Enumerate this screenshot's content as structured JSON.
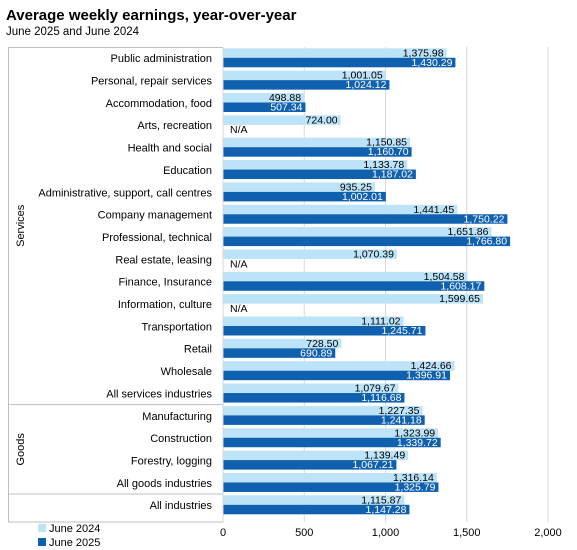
{
  "chart_data": {
    "type": "bar",
    "orientation": "horizontal",
    "title": "Average weekly earnings, year-over-year",
    "subtitle": "June 2025 and June 2024",
    "groups": [
      {
        "label": "Services",
        "categories": [
          "Public administration",
          "Personal, repair services",
          "Accommodation, food",
          "Arts, recreation",
          "Health and social",
          "Education",
          "Administrative, support, call centres",
          "Company management",
          "Professional, technical",
          "Real estate, leasing",
          "Finance, Insurance",
          "Information, culture",
          "Transportation",
          "Retail",
          "Wholesale",
          "All services industries"
        ]
      },
      {
        "label": "Goods",
        "categories": [
          "Manufacturing",
          "Construction",
          "Forestry, logging",
          "All goods industries"
        ]
      },
      {
        "label": "",
        "categories": [
          "All industries"
        ]
      }
    ],
    "categories": [
      "Public administration",
      "Personal, repair services",
      "Accommodation, food",
      "Arts, recreation",
      "Health and social",
      "Education",
      "Administrative, support, call centres",
      "Company management",
      "Professional, technical",
      "Real estate, leasing",
      "Finance, Insurance",
      "Information, culture",
      "Transportation",
      "Retail",
      "Wholesale",
      "All services industries",
      "Manufacturing",
      "Construction",
      "Forestry, logging",
      "All goods industries",
      "All industries"
    ],
    "series": [
      {
        "name": "June 2024",
        "color": "#bde3f8",
        "values": [
          1375.98,
          1001.05,
          498.88,
          724.0,
          1150.85,
          1133.78,
          935.25,
          1441.45,
          1651.86,
          1070.39,
          1504.58,
          1599.65,
          1111.02,
          728.5,
          1424.66,
          1079.67,
          1227.35,
          1323.99,
          1139.49,
          1316.14,
          1115.87
        ],
        "labels": [
          "1,375.98",
          "1,001.05",
          "498.88",
          "724.00",
          "1,150.85",
          "1,133.78",
          "935.25",
          "1,441.45",
          "1,651.86",
          "1,070.39",
          "1,504.58",
          "1,599.65",
          "1,111.02",
          "728.50",
          "1,424.66",
          "1,079.67",
          "1,227.35",
          "1,323.99",
          "1,139.49",
          "1,316.14",
          "1,115.87"
        ]
      },
      {
        "name": "June 2025",
        "color": "#1060b0",
        "values": [
          1430.29,
          1024.12,
          507.34,
          null,
          1160.7,
          1187.02,
          1002.01,
          1750.22,
          1766.8,
          null,
          1608.17,
          null,
          1245.71,
          690.89,
          1396.91,
          1116.68,
          1241.18,
          1339.72,
          1067.21,
          1325.79,
          1147.28
        ],
        "labels": [
          "1,430.29",
          "1,024.12",
          "507.34",
          "N/A",
          "1,160.70",
          "1,187.02",
          "1,002.01",
          "1,750.22",
          "1,766.80",
          "N/A",
          "1,608.17",
          "N/A",
          "1,245.71",
          "690.89",
          "1,396.91",
          "1,116.68",
          "1,241.18",
          "1,339.72",
          "1,067.21",
          "1,325.79",
          "1,147.28"
        ]
      }
    ],
    "xlim": [
      0,
      2000
    ],
    "xticks": [
      0,
      500,
      1000,
      1500,
      2000
    ],
    "xtick_labels": [
      "0",
      "500",
      "1,000",
      "1,500",
      "2,000"
    ],
    "grid": true,
    "legend_position": "bottom-left"
  }
}
